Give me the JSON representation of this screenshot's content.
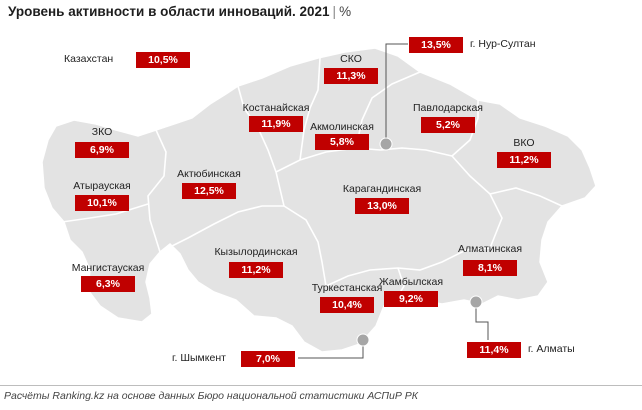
{
  "title": {
    "text": "Уровень активности в области инноваций. 2021",
    "separator": "|",
    "unit": "%"
  },
  "kazakhstan": {
    "name": "Казахстан",
    "value": "10,5%"
  },
  "regions": {
    "sko": {
      "name": "СКО",
      "value": "11,3%"
    },
    "zko": {
      "name": "ЗКО",
      "value": "6,9%"
    },
    "kostanay": {
      "name": "Костанайская",
      "value": "11,9%"
    },
    "akmola": {
      "name": "Акмолинская",
      "value": "5,8%"
    },
    "pavlodar": {
      "name": "Павлодарская",
      "value": "5,2%"
    },
    "vko": {
      "name": "ВКО",
      "value": "11,2%"
    },
    "atyrau": {
      "name": "Атырауская",
      "value": "10,1%"
    },
    "aktobe": {
      "name": "Актюбинская",
      "value": "12,5%"
    },
    "karaganda": {
      "name": "Карагандинская",
      "value": "13,0%"
    },
    "kyzylorda": {
      "name": "Кызылординская",
      "value": "11,2%"
    },
    "almaty_region": {
      "name": "Алматинская",
      "value": "8,1%"
    },
    "mangystau": {
      "name": "Мангистауская",
      "value": "6,3%"
    },
    "turkestan": {
      "name": "Туркестанская",
      "value": "10,4%"
    },
    "zhambyl": {
      "name": "Жамбылская",
      "value": "9,2%"
    }
  },
  "cities": {
    "nur_sultan": {
      "name": "г. Нур-Султан",
      "value": "13,5%"
    },
    "shymkent": {
      "name": "г. Шымкент",
      "value": "7,0%"
    },
    "almaty": {
      "name": "г. Алматы",
      "value": "11,4%"
    }
  },
  "colors": {
    "value_box": "#c00000",
    "map_fill": "#e3e3e3",
    "border": "#ffffff",
    "city_marker": "#a6a6a6"
  },
  "footer": "Расчёты Ranking.kz на основе данных Бюро национальной статистики АСПиР РК"
}
